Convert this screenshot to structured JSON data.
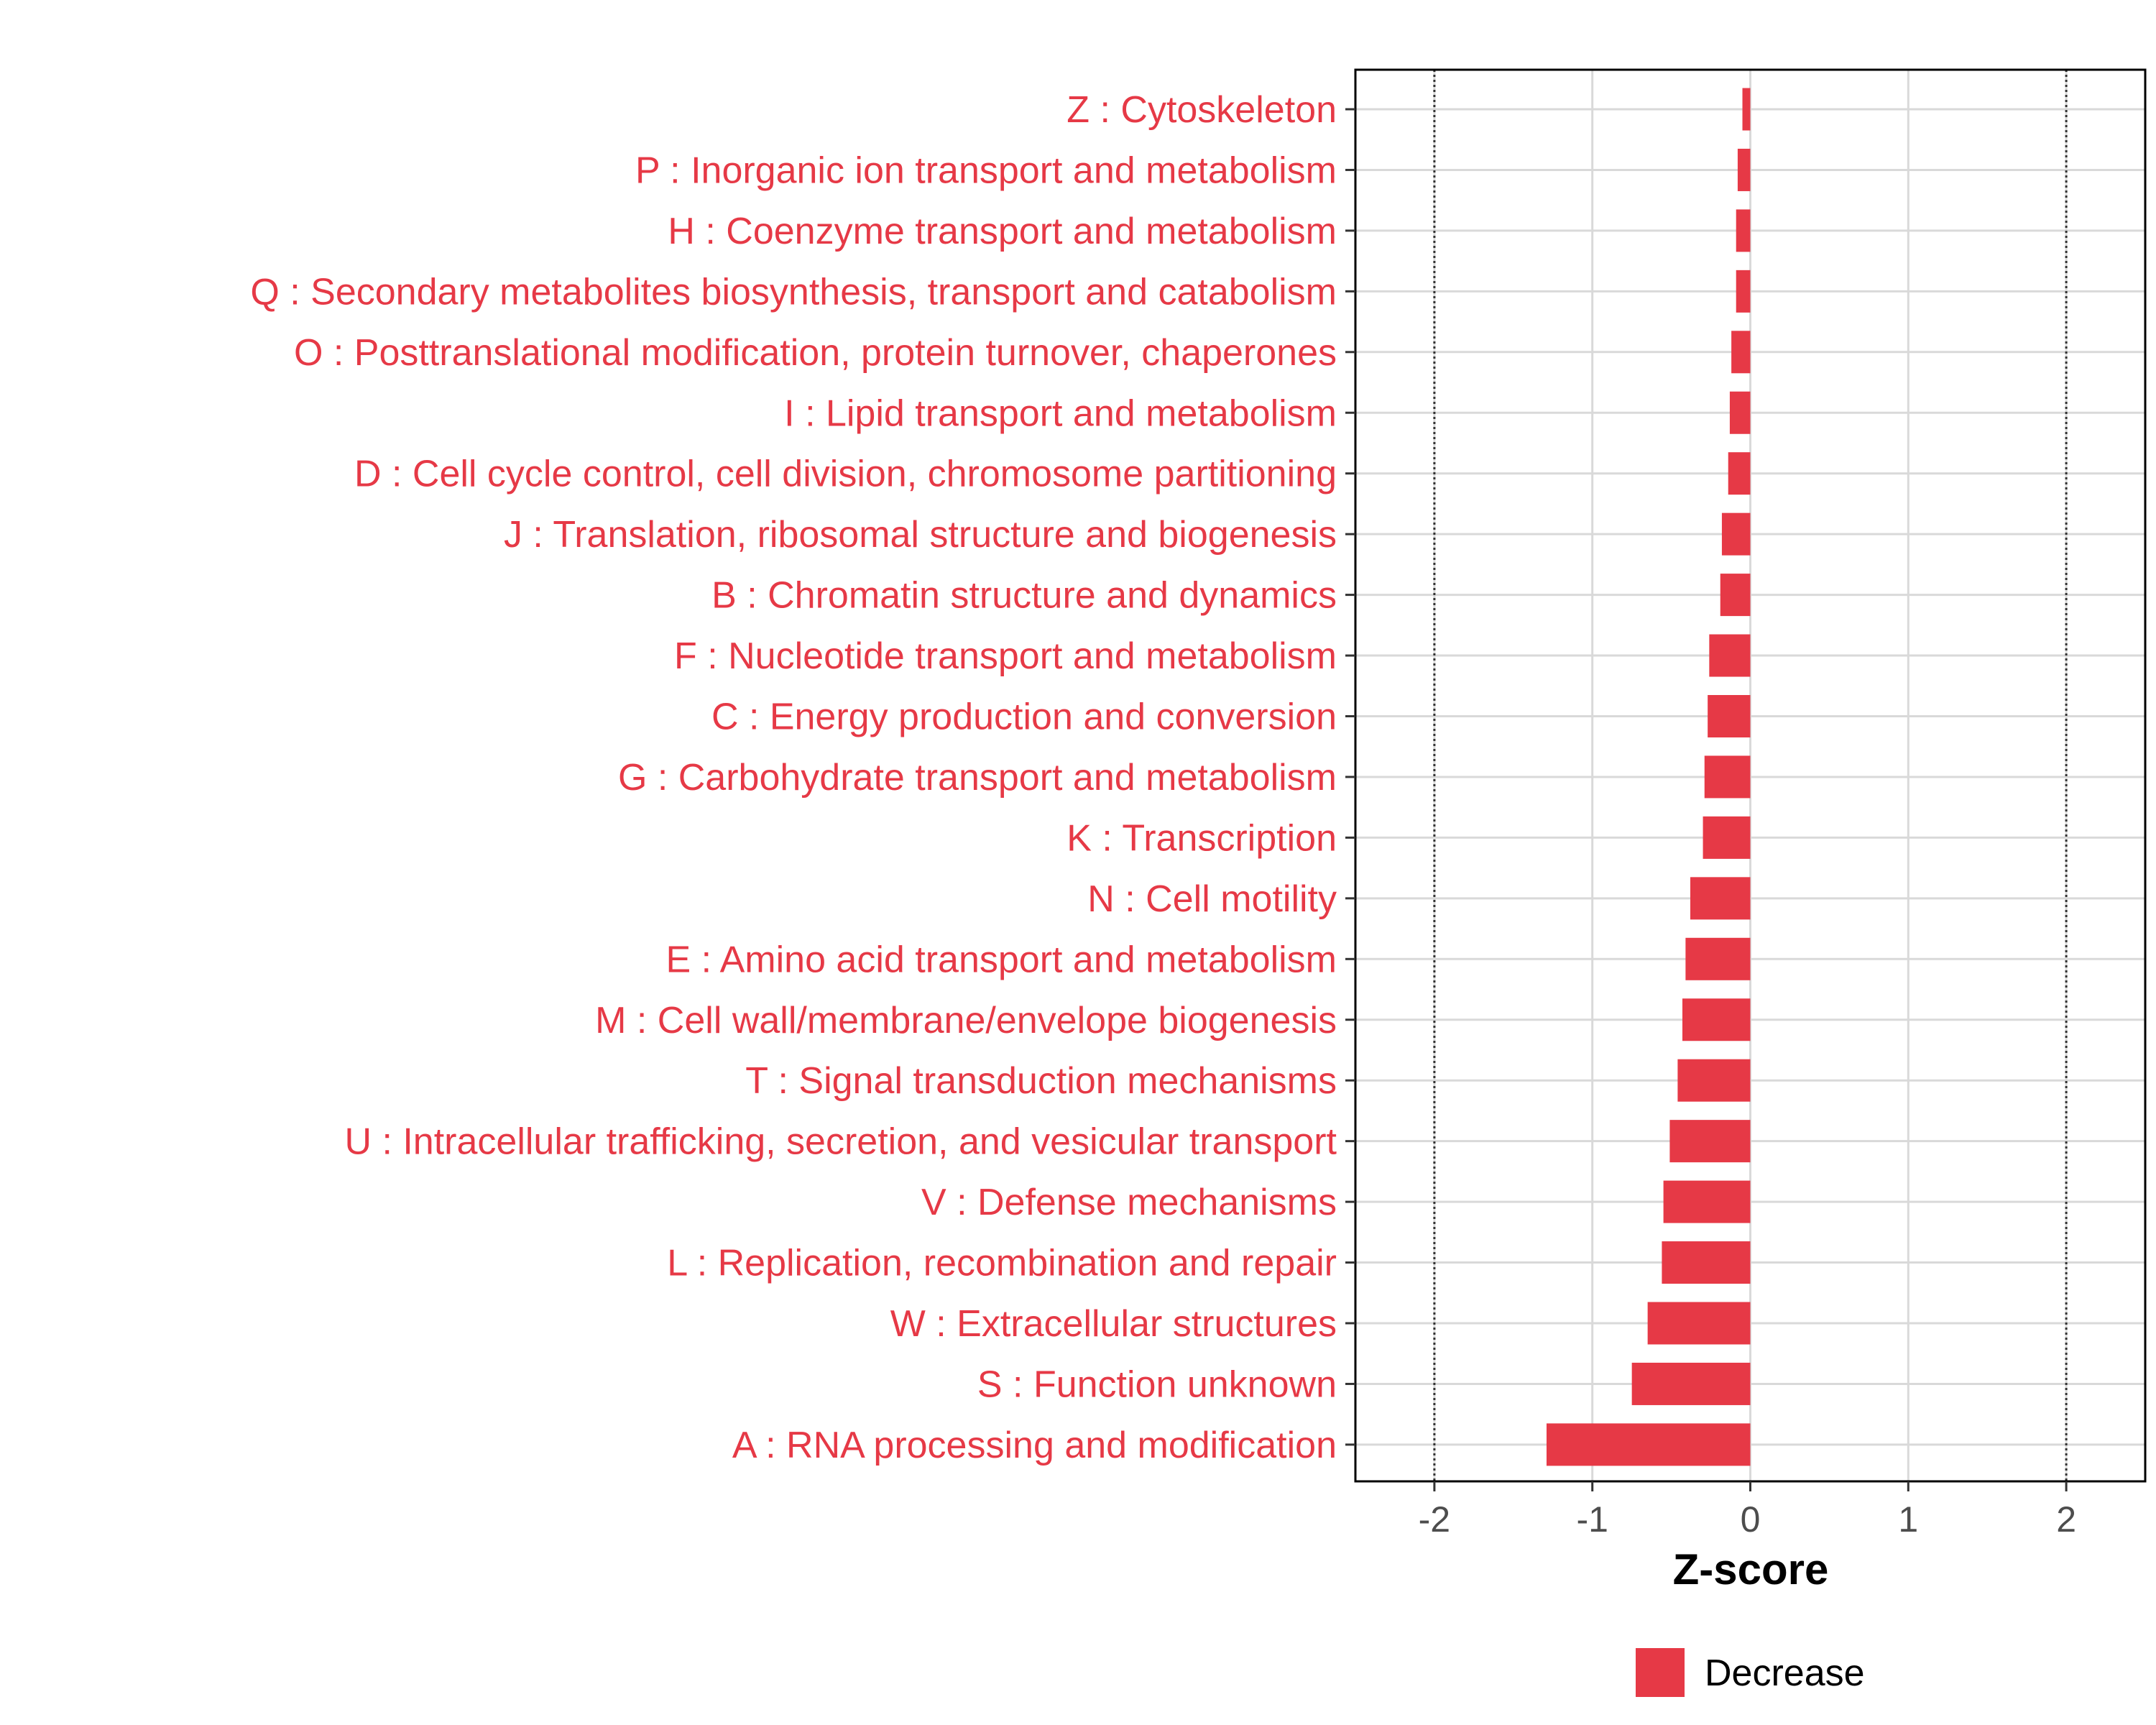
{
  "chart_data": {
    "type": "bar",
    "orientation": "horizontal",
    "title": "",
    "xlabel": "Z-score",
    "ylabel": "",
    "xlim": [
      -2.5,
      2.5
    ],
    "xticks": [
      -2,
      -1,
      0,
      1,
      2
    ],
    "xtick_labels": [
      "-2",
      "-1",
      "0",
      "1",
      "2"
    ],
    "reference_lines": [
      -2,
      2
    ],
    "grid": true,
    "legend_position": "bottom",
    "categories": [
      "Z : Cytoskeleton",
      "P : Inorganic ion transport and metabolism",
      "H : Coenzyme transport and metabolism",
      "Q : Secondary metabolites biosynthesis, transport and catabolism",
      "O : Posttranslational modification, protein turnover, chaperones",
      "I : Lipid transport and metabolism",
      "D : Cell cycle control, cell division, chromosome partitioning",
      "J : Translation, ribosomal structure and biogenesis",
      "B : Chromatin structure and dynamics",
      "F : Nucleotide transport and metabolism",
      "C : Energy production and conversion",
      "G : Carbohydrate transport and metabolism",
      "K : Transcription",
      "N : Cell motility",
      "E : Amino acid transport and metabolism",
      "M : Cell wall/membrane/envelope biogenesis",
      "T : Signal transduction mechanisms",
      "U : Intracellular trafficking, secretion, and vesicular transport",
      "V : Defense mechanisms",
      "L : Replication, recombination and repair",
      "W : Extracellular structures",
      "S : Function unknown",
      "A : RNA processing and modification"
    ],
    "series": [
      {
        "name": "Decrease",
        "color": "#e63946",
        "values": [
          -0.05,
          -0.08,
          -0.09,
          -0.09,
          -0.12,
          -0.13,
          -0.14,
          -0.18,
          -0.19,
          -0.26,
          -0.27,
          -0.29,
          -0.3,
          -0.38,
          -0.41,
          -0.43,
          -0.46,
          -0.51,
          -0.55,
          -0.56,
          -0.65,
          -0.75,
          -1.29
        ]
      }
    ]
  }
}
